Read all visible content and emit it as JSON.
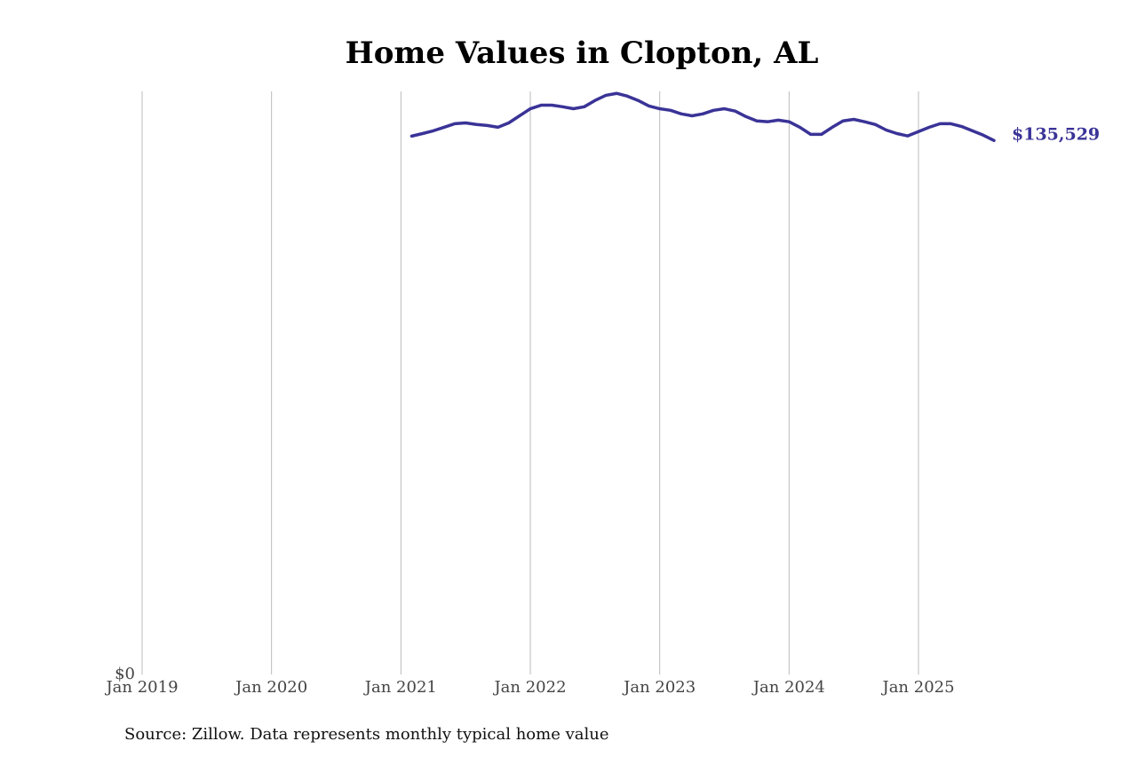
{
  "chart_data": {
    "type": "line",
    "title": "Home Values in Clopton, AL",
    "source": "Source: Zillow. Data represents monthly typical home value",
    "x": [
      "2021-02",
      "2021-03",
      "2021-04",
      "2021-05",
      "2021-06",
      "2021-07",
      "2021-08",
      "2021-09",
      "2021-10",
      "2021-11",
      "2021-12",
      "2022-01",
      "2022-02",
      "2022-03",
      "2022-04",
      "2022-05",
      "2022-06",
      "2022-07",
      "2022-08",
      "2022-09",
      "2022-10",
      "2022-11",
      "2022-12",
      "2023-01",
      "2023-02",
      "2023-03",
      "2023-04",
      "2023-05",
      "2023-06",
      "2023-07",
      "2023-08",
      "2023-09",
      "2023-10",
      "2023-11",
      "2023-12",
      "2024-01",
      "2024-02",
      "2024-03",
      "2024-04",
      "2024-05",
      "2024-06",
      "2024-07",
      "2024-08",
      "2024-09",
      "2024-10",
      "2024-11",
      "2024-12",
      "2025-01",
      "2025-02",
      "2025-03",
      "2025-04",
      "2025-05",
      "2025-06",
      "2025-07",
      "2025-08"
    ],
    "series": [
      {
        "name": "Typical home value",
        "color": "#3a3397",
        "values": [
          136650,
          137300,
          138000,
          138900,
          139800,
          140000,
          139600,
          139350,
          138900,
          140000,
          141800,
          143600,
          144500,
          144500,
          144100,
          143600,
          144100,
          145700,
          147000,
          147500,
          146800,
          145700,
          144300,
          143600,
          143200,
          142300,
          141800,
          142300,
          143200,
          143600,
          143000,
          141600,
          140500,
          140300,
          140700,
          140300,
          138900,
          137100,
          137100,
          138900,
          140500,
          140900,
          140300,
          139600,
          138200,
          137300,
          136700,
          137800,
          138900,
          139800,
          139800,
          139100,
          138000,
          136900,
          135529
        ],
        "value_labels": [
          null,
          null,
          null,
          null,
          null,
          null,
          null,
          null,
          null,
          null,
          null,
          null,
          null,
          null,
          null,
          null,
          null,
          null,
          null,
          null,
          null,
          null,
          null,
          null,
          null,
          null,
          null,
          null,
          null,
          null,
          null,
          null,
          null,
          null,
          null,
          null,
          null,
          null,
          null,
          null,
          null,
          null,
          null,
          null,
          null,
          null,
          null,
          null,
          null,
          null,
          null,
          null,
          null,
          null,
          "$135,529"
        ]
      }
    ],
    "xlim": [
      "2019-01",
      "2025-08"
    ],
    "xticks": [
      {
        "value": "2019-01",
        "label": "Jan 2019"
      },
      {
        "value": "2020-01",
        "label": "Jan 2020"
      },
      {
        "value": "2021-01",
        "label": "Jan 2021"
      },
      {
        "value": "2022-01",
        "label": "Jan 2022"
      },
      {
        "value": "2023-01",
        "label": "Jan 2023"
      },
      {
        "value": "2024-01",
        "label": "Jan 2024"
      },
      {
        "value": "2025-01",
        "label": "Jan 2025"
      }
    ],
    "ylim": [
      0,
      148000
    ],
    "yticks": [
      {
        "value": 0,
        "label": "$0"
      }
    ],
    "grid": true
  }
}
